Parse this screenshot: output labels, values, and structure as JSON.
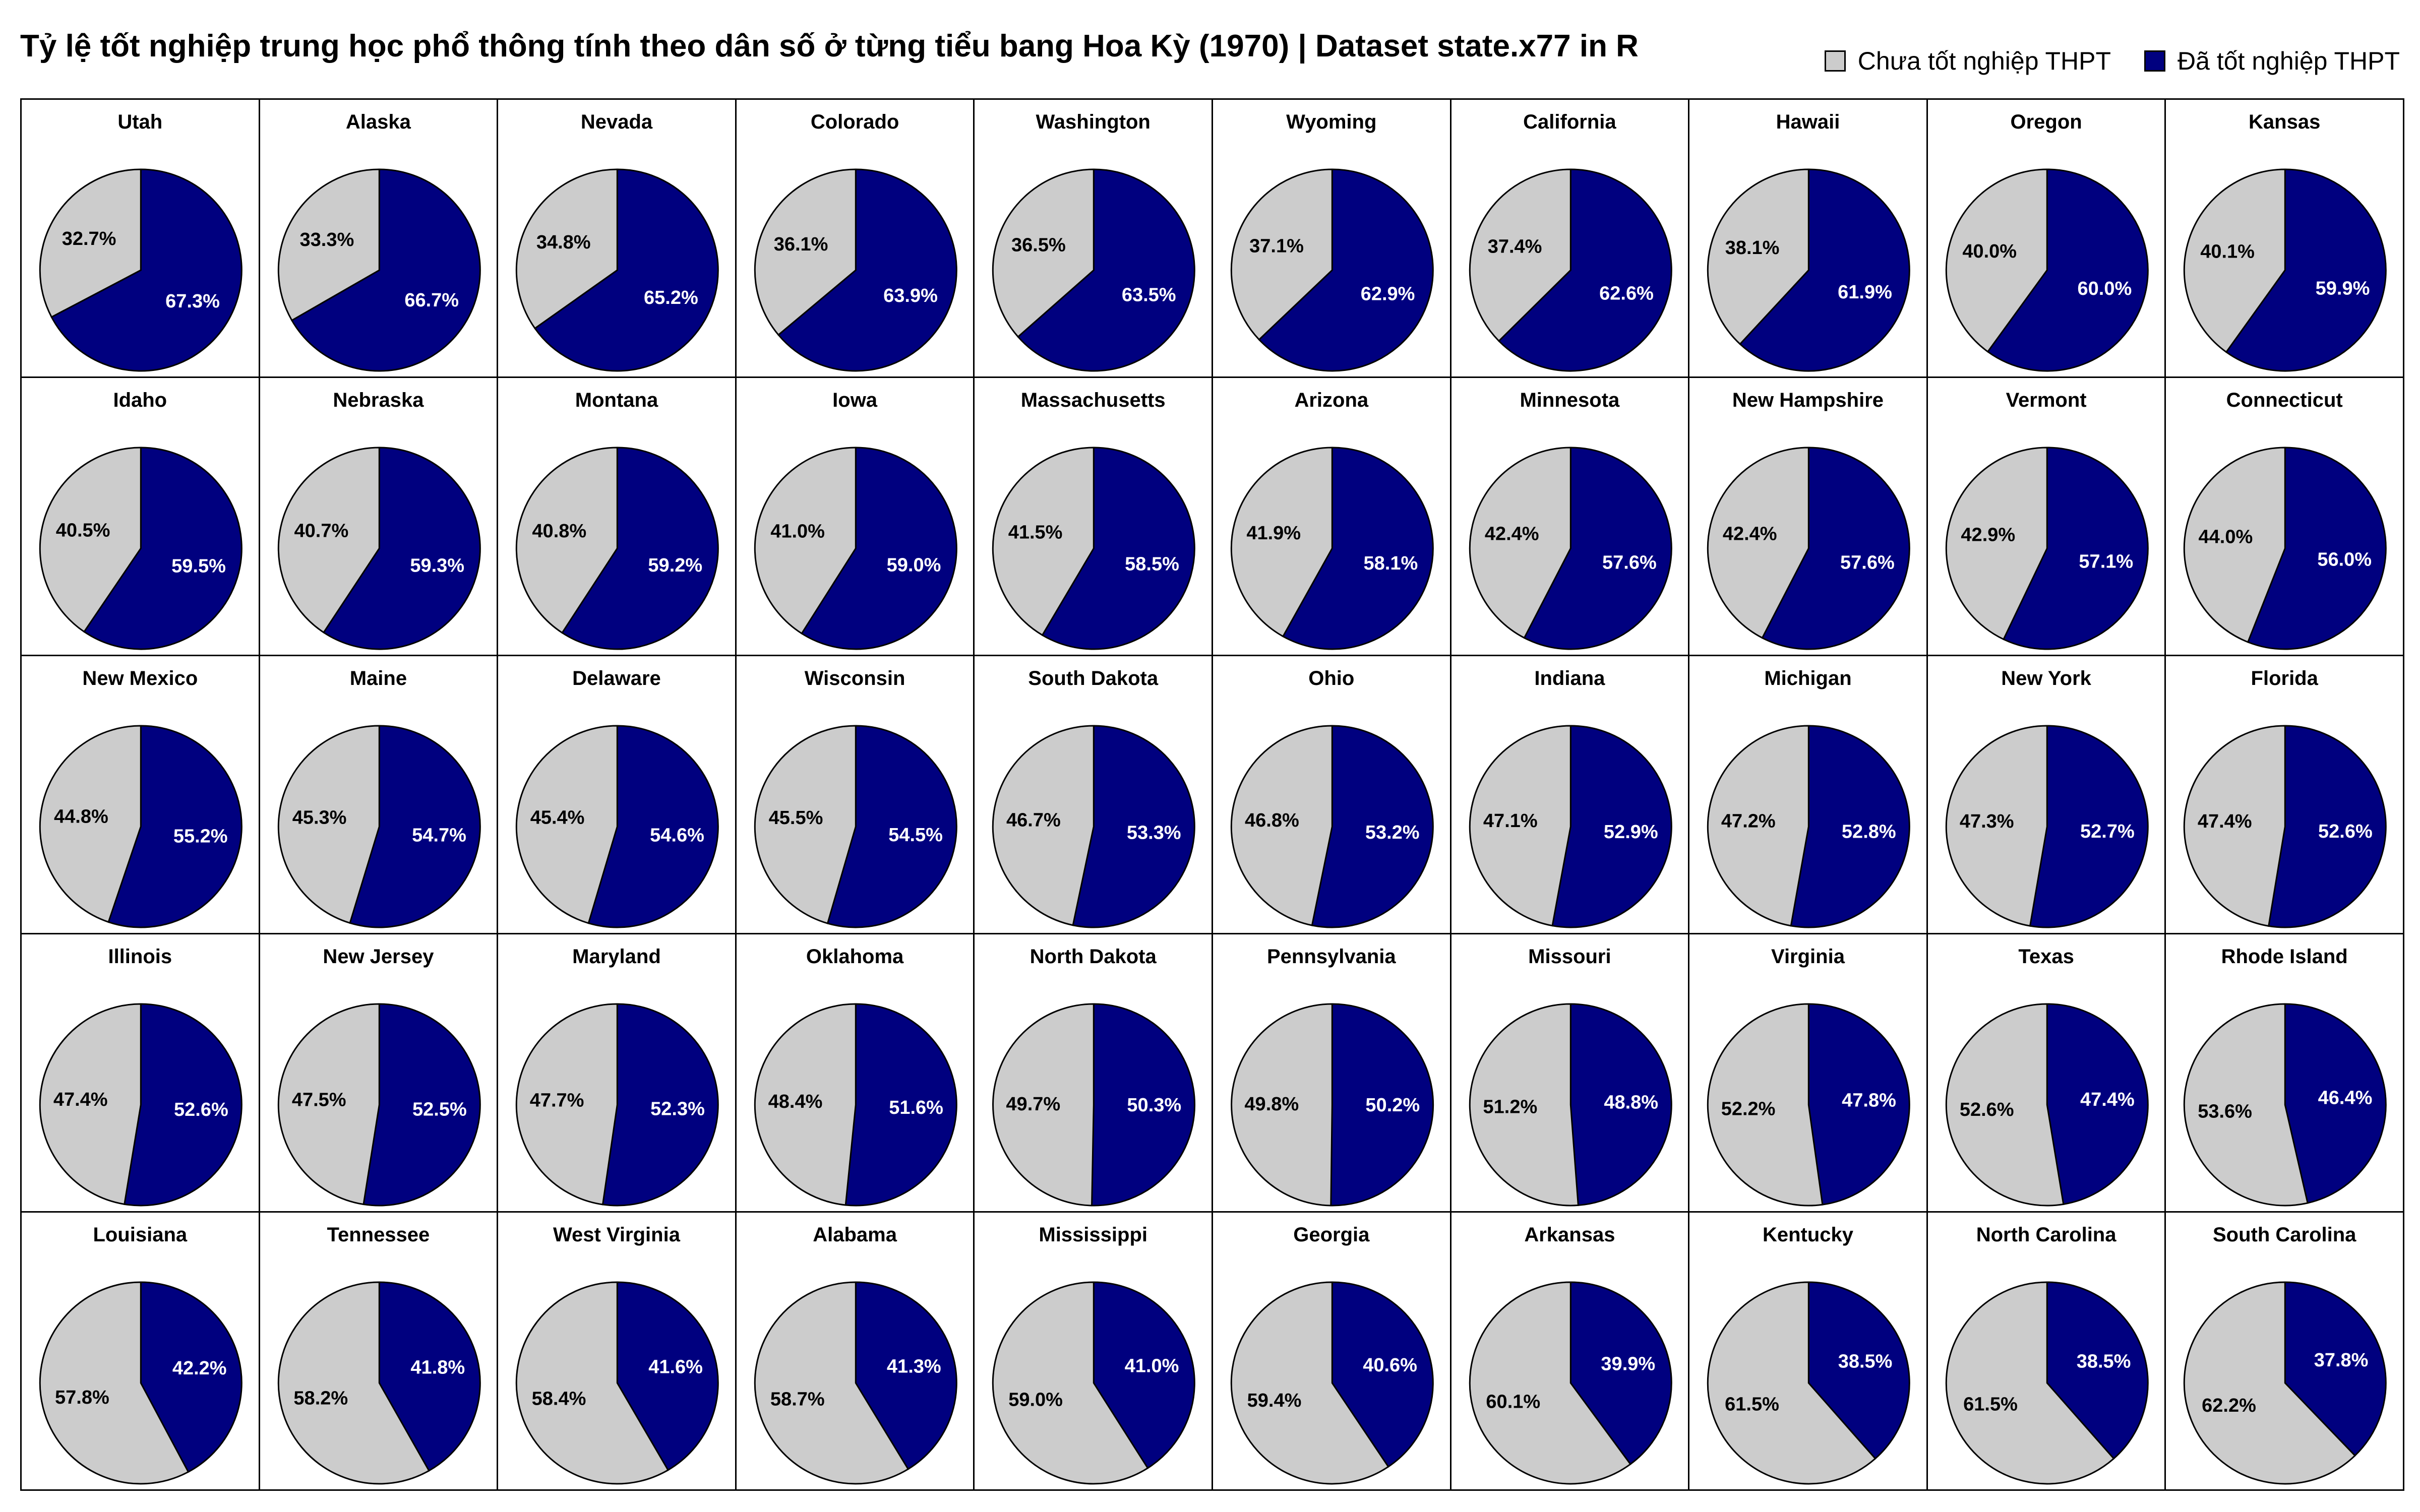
{
  "chart_data": {
    "type": "pie",
    "layout": "small-multiples",
    "title": "Tỷ lệ tốt nghiệp trung học phổ thông tính theo dân số ở từng tiểu bang Hoa Kỳ (1970) | Dataset state.x77 in R",
    "legend": {
      "placement": "top-right",
      "entries": [
        {
          "key": "not_graduated",
          "label": "Chưa tốt nghiệp THPT",
          "color": "#cccccc"
        },
        {
          "key": "graduated",
          "label": "Đã tốt nghiệp THPT",
          "color": "#00007f"
        }
      ]
    },
    "value_unit": "%",
    "states": [
      {
        "name": "Utah",
        "graduated": 67.3,
        "not_graduated": 32.7
      },
      {
        "name": "Alaska",
        "graduated": 66.7,
        "not_graduated": 33.3
      },
      {
        "name": "Nevada",
        "graduated": 65.2,
        "not_graduated": 34.8
      },
      {
        "name": "Colorado",
        "graduated": 63.9,
        "not_graduated": 36.1
      },
      {
        "name": "Washington",
        "graduated": 63.5,
        "not_graduated": 36.5
      },
      {
        "name": "Wyoming",
        "graduated": 62.9,
        "not_graduated": 37.1
      },
      {
        "name": "California",
        "graduated": 62.6,
        "not_graduated": 37.4
      },
      {
        "name": "Hawaii",
        "graduated": 61.9,
        "not_graduated": 38.1
      },
      {
        "name": "Oregon",
        "graduated": 60.0,
        "not_graduated": 40.0
      },
      {
        "name": "Kansas",
        "graduated": 59.9,
        "not_graduated": 40.1
      },
      {
        "name": "Idaho",
        "graduated": 59.5,
        "not_graduated": 40.5
      },
      {
        "name": "Nebraska",
        "graduated": 59.3,
        "not_graduated": 40.7
      },
      {
        "name": "Montana",
        "graduated": 59.2,
        "not_graduated": 40.8
      },
      {
        "name": "Iowa",
        "graduated": 59.0,
        "not_graduated": 41.0
      },
      {
        "name": "Massachusetts",
        "graduated": 58.5,
        "not_graduated": 41.5
      },
      {
        "name": "Arizona",
        "graduated": 58.1,
        "not_graduated": 41.9
      },
      {
        "name": "Minnesota",
        "graduated": 57.6,
        "not_graduated": 42.4
      },
      {
        "name": "New Hampshire",
        "graduated": 57.6,
        "not_graduated": 42.4
      },
      {
        "name": "Vermont",
        "graduated": 57.1,
        "not_graduated": 42.9
      },
      {
        "name": "Connecticut",
        "graduated": 56.0,
        "not_graduated": 44.0
      },
      {
        "name": "New Mexico",
        "graduated": 55.2,
        "not_graduated": 44.8
      },
      {
        "name": "Maine",
        "graduated": 54.7,
        "not_graduated": 45.3
      },
      {
        "name": "Delaware",
        "graduated": 54.6,
        "not_graduated": 45.4
      },
      {
        "name": "Wisconsin",
        "graduated": 54.5,
        "not_graduated": 45.5
      },
      {
        "name": "South Dakota",
        "graduated": 53.3,
        "not_graduated": 46.7
      },
      {
        "name": "Ohio",
        "graduated": 53.2,
        "not_graduated": 46.8
      },
      {
        "name": "Indiana",
        "graduated": 52.9,
        "not_graduated": 47.1
      },
      {
        "name": "Michigan",
        "graduated": 52.8,
        "not_graduated": 47.2
      },
      {
        "name": "New York",
        "graduated": 52.7,
        "not_graduated": 47.3
      },
      {
        "name": "Florida",
        "graduated": 52.6,
        "not_graduated": 47.4
      },
      {
        "name": "Illinois",
        "graduated": 52.6,
        "not_graduated": 47.4
      },
      {
        "name": "New Jersey",
        "graduated": 52.5,
        "not_graduated": 47.5
      },
      {
        "name": "Maryland",
        "graduated": 52.3,
        "not_graduated": 47.7
      },
      {
        "name": "Oklahoma",
        "graduated": 51.6,
        "not_graduated": 48.4
      },
      {
        "name": "North Dakota",
        "graduated": 50.3,
        "not_graduated": 49.7
      },
      {
        "name": "Pennsylvania",
        "graduated": 50.2,
        "not_graduated": 49.8
      },
      {
        "name": "Missouri",
        "graduated": 48.8,
        "not_graduated": 51.2
      },
      {
        "name": "Virginia",
        "graduated": 47.8,
        "not_graduated": 52.2
      },
      {
        "name": "Texas",
        "graduated": 47.4,
        "not_graduated": 52.6
      },
      {
        "name": "Rhode Island",
        "graduated": 46.4,
        "not_graduated": 53.6
      },
      {
        "name": "Louisiana",
        "graduated": 42.2,
        "not_graduated": 57.8
      },
      {
        "name": "Tennessee",
        "graduated": 41.8,
        "not_graduated": 58.2
      },
      {
        "name": "West Virginia",
        "graduated": 41.6,
        "not_graduated": 58.4
      },
      {
        "name": "Alabama",
        "graduated": 41.3,
        "not_graduated": 58.7
      },
      {
        "name": "Mississippi",
        "graduated": 41.0,
        "not_graduated": 59.0
      },
      {
        "name": "Georgia",
        "graduated": 40.6,
        "not_graduated": 59.4
      },
      {
        "name": "Arkansas",
        "graduated": 39.9,
        "not_graduated": 60.1
      },
      {
        "name": "Kentucky",
        "graduated": 38.5,
        "not_graduated": 61.5
      },
      {
        "name": "North Carolina",
        "graduated": 38.5,
        "not_graduated": 61.5
      },
      {
        "name": "South Carolina",
        "graduated": 37.8,
        "not_graduated": 62.2
      }
    ]
  }
}
